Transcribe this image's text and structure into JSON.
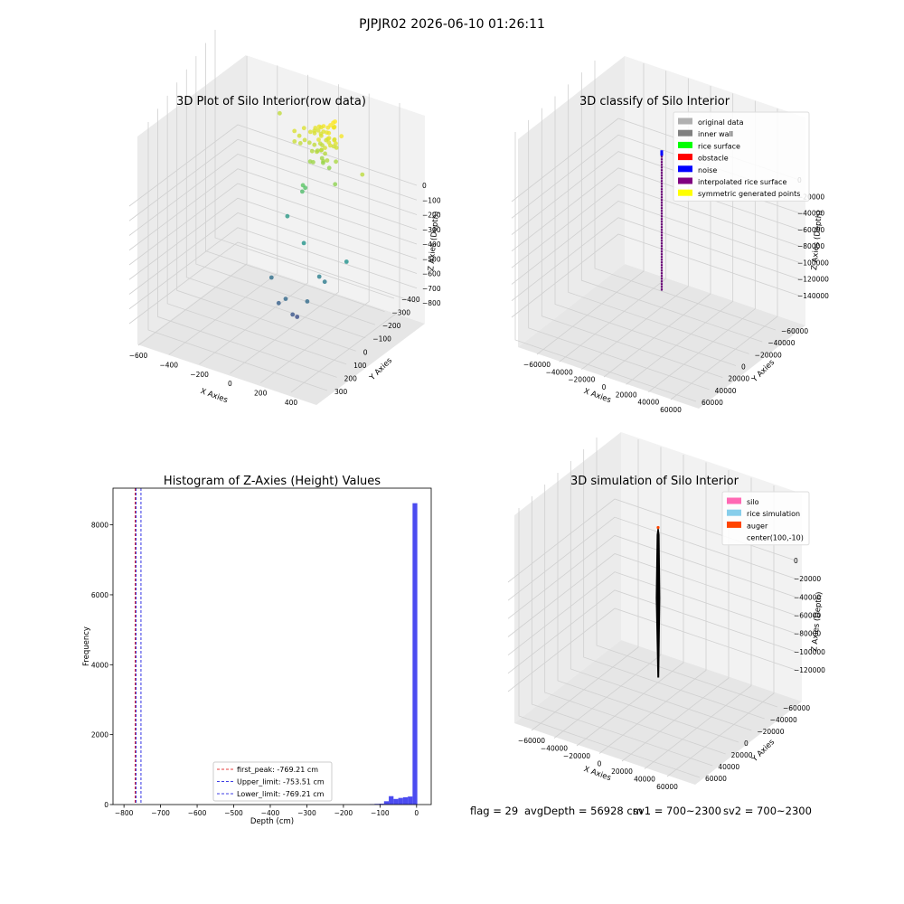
{
  "figure": {
    "suptitle": "PJPJR02 2026-06-10 01:26:11",
    "status": {
      "flag": "flag = 29",
      "avg_depth": "avgDepth = 56928 cm",
      "sv1": "sv1 = 700~2300",
      "sv2": "sv2 = 700~2300"
    }
  },
  "chart_data": [
    {
      "type": "scatter",
      "projection": "3d",
      "title": "3D Plot of Silo Interior(row data)",
      "xlabel": "X Axies",
      "ylabel": "Y Axies",
      "zlabel": "Z Axies (Depth)",
      "xticks": [
        "−600",
        "−400",
        "−200",
        "0",
        "200",
        "400"
      ],
      "yticks": [
        "300",
        "200",
        "100",
        "0",
        "−100",
        "−200",
        "−300",
        "−400"
      ],
      "zticks": [
        "0",
        "−100",
        "−200",
        "−300",
        "−400",
        "−500",
        "−600",
        "−700",
        "−800"
      ],
      "xlim": [
        -650,
        500
      ],
      "ylim": [
        -450,
        350
      ],
      "zlim": [
        -850,
        30
      ],
      "grid": true,
      "colormap": "viridis",
      "points": [
        {
          "x": 6,
          "y": -25,
          "z": -770
        },
        {
          "x": 4,
          "y": -56,
          "z": -747
        },
        {
          "x": -73,
          "y": -70,
          "z": -710
        },
        {
          "x": -20,
          "y": -80,
          "z": -676
        },
        {
          "x": 99,
          "y": -57,
          "z": -670
        },
        {
          "x": -178,
          "y": -3,
          "z": -654
        },
        {
          "x": 139,
          "y": 26,
          "z": -614
        },
        {
          "x": 104,
          "y": 26,
          "z": -600
        },
        {
          "x": -47,
          "y": 85,
          "z": -517
        },
        {
          "x": -242,
          "y": 188,
          "z": -491
        },
        {
          "x": 242,
          "y": 68,
          "z": -524
        },
        {
          "x": -124,
          "y": 162,
          "z": -349
        },
        {
          "x": -100,
          "y": 157,
          "z": -326
        },
        {
          "x": -97,
          "y": 136,
          "z": -305
        },
        {
          "x": 150,
          "y": 90,
          "z": -226
        },
        {
          "x": -411,
          "y": 325,
          "z": -152
        },
        {
          "x": 310,
          "y": 107,
          "z": -157
        },
        {
          "x": -160,
          "y": 216,
          "z": -112
        },
        {
          "x": -188,
          "y": 178,
          "z": -114
        },
        {
          "x": -158,
          "y": 179,
          "z": -128
        },
        {
          "x": -160,
          "y": 146,
          "z": -138
        },
        {
          "x": -141,
          "y": 168,
          "z": -151
        },
        {
          "x": -121,
          "y": 177,
          "z": -137
        },
        {
          "x": -103,
          "y": 191,
          "z": -150
        },
        {
          "x": -71,
          "y": 191,
          "z": -152
        },
        {
          "x": -48,
          "y": 208,
          "z": -149
        },
        {
          "x": -30,
          "y": 202,
          "z": -149
        },
        {
          "x": -12,
          "y": 209,
          "z": -127
        },
        {
          "x": -14,
          "y": 176,
          "z": -156
        },
        {
          "x": 34,
          "y": 148,
          "z": -123
        },
        {
          "x": 35,
          "y": 176,
          "z": -112
        },
        {
          "x": 53,
          "y": 191,
          "z": -131
        },
        {
          "x": 73,
          "y": 188,
          "z": -131
        },
        {
          "x": 24,
          "y": 190,
          "z": -102
        },
        {
          "x": 104,
          "y": 189,
          "z": -76
        },
        {
          "x": 37,
          "y": 211,
          "z": -64
        },
        {
          "x": -33,
          "y": 215,
          "z": -75
        },
        {
          "x": -70,
          "y": 225,
          "z": -89
        },
        {
          "x": -42,
          "y": 224,
          "z": -104
        },
        {
          "x": -12,
          "y": 223,
          "z": -80
        },
        {
          "x": 3,
          "y": 254,
          "z": -87
        },
        {
          "x": -66,
          "y": 235,
          "z": -96
        },
        {
          "x": -94,
          "y": 224,
          "z": -100
        },
        {
          "x": -103,
          "y": 227,
          "z": -115
        },
        {
          "x": -83,
          "y": 233,
          "z": -112
        },
        {
          "x": -60,
          "y": 226,
          "z": -118
        },
        {
          "x": -39,
          "y": 205,
          "z": -113
        },
        {
          "x": -7,
          "y": 208,
          "z": -93
        },
        {
          "x": 45,
          "y": 206,
          "z": -110
        },
        {
          "x": 17,
          "y": 232,
          "z": -76
        },
        {
          "x": 13,
          "y": 233,
          "z": -58
        },
        {
          "x": 24,
          "y": 234,
          "z": -51
        },
        {
          "x": 11,
          "y": 215,
          "z": -61
        },
        {
          "x": 20,
          "y": 193,
          "z": -83
        },
        {
          "x": 26,
          "y": 178,
          "z": -100
        },
        {
          "x": 52,
          "y": 167,
          "z": -117
        },
        {
          "x": -10,
          "y": 152,
          "z": -100
        },
        {
          "x": 81,
          "y": 174,
          "z": -105
        },
        {
          "x": 63,
          "y": 183,
          "z": -99
        },
        {
          "x": -65,
          "y": 167,
          "z": -167
        },
        {
          "x": -30,
          "y": 162,
          "z": -160
        },
        {
          "x": -7,
          "y": 169,
          "z": -150
        },
        {
          "x": 11,
          "y": 175,
          "z": -164
        },
        {
          "x": -20,
          "y": 188,
          "z": -196
        },
        {
          "x": -7,
          "y": 181,
          "z": -210
        },
        {
          "x": 39,
          "y": 174,
          "z": -218
        },
        {
          "x": -43,
          "y": 149,
          "z": -201
        },
        {
          "x": -63,
          "y": 150,
          "z": -203
        },
        {
          "x": 16,
          "y": 156,
          "z": -187
        },
        {
          "x": 47,
          "y": 149,
          "z": -174
        },
        {
          "x": -92,
          "y": 216,
          "z": -118
        },
        {
          "x": -107,
          "y": 202,
          "z": -110
        },
        {
          "x": 80,
          "y": 176,
          "z": -183
        },
        {
          "x": -55,
          "y": 196,
          "z": -175
        }
      ]
    },
    {
      "type": "scatter",
      "projection": "3d",
      "title": "3D classify of Silo Interior",
      "xlabel": "X Axies",
      "ylabel": "Y Axies",
      "zlabel": "Z Axies (Depth)",
      "xticks": [
        "−60000",
        "−40000",
        "−20000",
        "0",
        "20000",
        "40000",
        "60000"
      ],
      "yticks": [
        "60000",
        "40000",
        "20000",
        "0",
        "−20000",
        "−40000",
        "−60000"
      ],
      "zticks": [
        "0",
        "−20000",
        "−40000",
        "−60000",
        "−80000",
        "−100000",
        "−120000",
        "−140000"
      ],
      "xlim": [
        -70000,
        70000
      ],
      "ylim": [
        -70000,
        70000
      ],
      "zlim": [
        -150000,
        5000
      ],
      "grid": true,
      "legend": {
        "placement": "upper-right",
        "entries": [
          {
            "label": "original data",
            "color": "#b0b0b0"
          },
          {
            "label": "inner wall",
            "color": "#808080"
          },
          {
            "label": "rice surface",
            "color": "#00ff00"
          },
          {
            "label": "obstacle",
            "color": "#ff0000"
          },
          {
            "label": "noise",
            "color": "#0000ff"
          },
          {
            "label": "interpolated rice surface",
            "color": "#800080"
          },
          {
            "label": "symmetric generated points",
            "color": "#ffff00"
          }
        ]
      },
      "series": [
        {
          "name": "interpolated rice surface",
          "x": [
            0,
            0
          ],
          "y": [
            0,
            0
          ],
          "z": [
            -10000,
            -150000
          ]
        },
        {
          "name": "noise",
          "x": [
            0
          ],
          "y": [
            0
          ],
          "z": [
            -10000
          ]
        }
      ]
    },
    {
      "type": "histogram",
      "title": "Histogram of Z-Axies (Height) Values",
      "xlabel": "Depth (cm)",
      "ylabel": "Frequency",
      "xlim": [
        -830,
        40
      ],
      "ylim": [
        0,
        9050
      ],
      "xticks": [
        "−800",
        "−700",
        "−600",
        "−500",
        "−400",
        "−300",
        "−200",
        "−100",
        "0"
      ],
      "yticks": [
        "0",
        "2000",
        "4000",
        "6000",
        "8000"
      ],
      "bar_color": "#4b4bf0",
      "bins": [
        {
          "x0": -128,
          "x1": -115,
          "count": 10
        },
        {
          "x0": -115,
          "x1": -102,
          "count": 20
        },
        {
          "x0": -102,
          "x1": -89,
          "count": 25
        },
        {
          "x0": -89,
          "x1": -76,
          "count": 95
        },
        {
          "x0": -76,
          "x1": -63,
          "count": 240
        },
        {
          "x0": -63,
          "x1": -50,
          "count": 160
        },
        {
          "x0": -50,
          "x1": -37,
          "count": 190
        },
        {
          "x0": -37,
          "x1": -24,
          "count": 210
        },
        {
          "x0": -24,
          "x1": -11,
          "count": 230
        },
        {
          "x0": -11,
          "x1": 2,
          "count": 8620
        }
      ],
      "vlines": [
        {
          "x": -769.21,
          "color": "#dd0000",
          "label": "first_peak: -769.21 cm"
        },
        {
          "x": -753.51,
          "color": "#0000dd",
          "label": "Upper_limit: -753.51 cm"
        },
        {
          "x": -769.21,
          "color": "#0000dd",
          "label": "Lower_limit: -769.21 cm"
        }
      ],
      "legend": {
        "placement": "lower-center"
      }
    },
    {
      "type": "surface",
      "projection": "3d",
      "title": "3D simulation of Silo Interior",
      "xlabel": "X Axies",
      "ylabel": "Y Axies",
      "zlabel": "Z Axies (Depth)",
      "xticks": [
        "−60000",
        "−40000",
        "−20000",
        "0",
        "20000",
        "40000",
        "60000"
      ],
      "yticks": [
        "60000",
        "40000",
        "20000",
        "0",
        "−20000",
        "−40000",
        "−60000"
      ],
      "zticks": [
        "0",
        "−20000",
        "−40000",
        "−60000",
        "−80000",
        "−100000",
        "−120000"
      ],
      "xlim": [
        -70000,
        70000
      ],
      "ylim": [
        -70000,
        70000
      ],
      "zlim": [
        -130000,
        5000
      ],
      "grid": true,
      "legend": {
        "placement": "upper-right",
        "entries": [
          {
            "label": "silo",
            "color": "#ff69b4"
          },
          {
            "label": "rice simulation",
            "color": "#87ceeb"
          },
          {
            "label": "auger",
            "color": "#ff4500"
          },
          {
            "label": "center(100,-10)",
            "color": "none"
          }
        ]
      },
      "series": [
        {
          "name": "silo",
          "x": [
            0,
            0
          ],
          "y": [
            0,
            0
          ],
          "z": [
            0,
            -125000
          ]
        },
        {
          "name": "center(100,-10)",
          "x": [
            100
          ],
          "y": [
            -10
          ],
          "z": [
            0
          ]
        }
      ]
    }
  ]
}
